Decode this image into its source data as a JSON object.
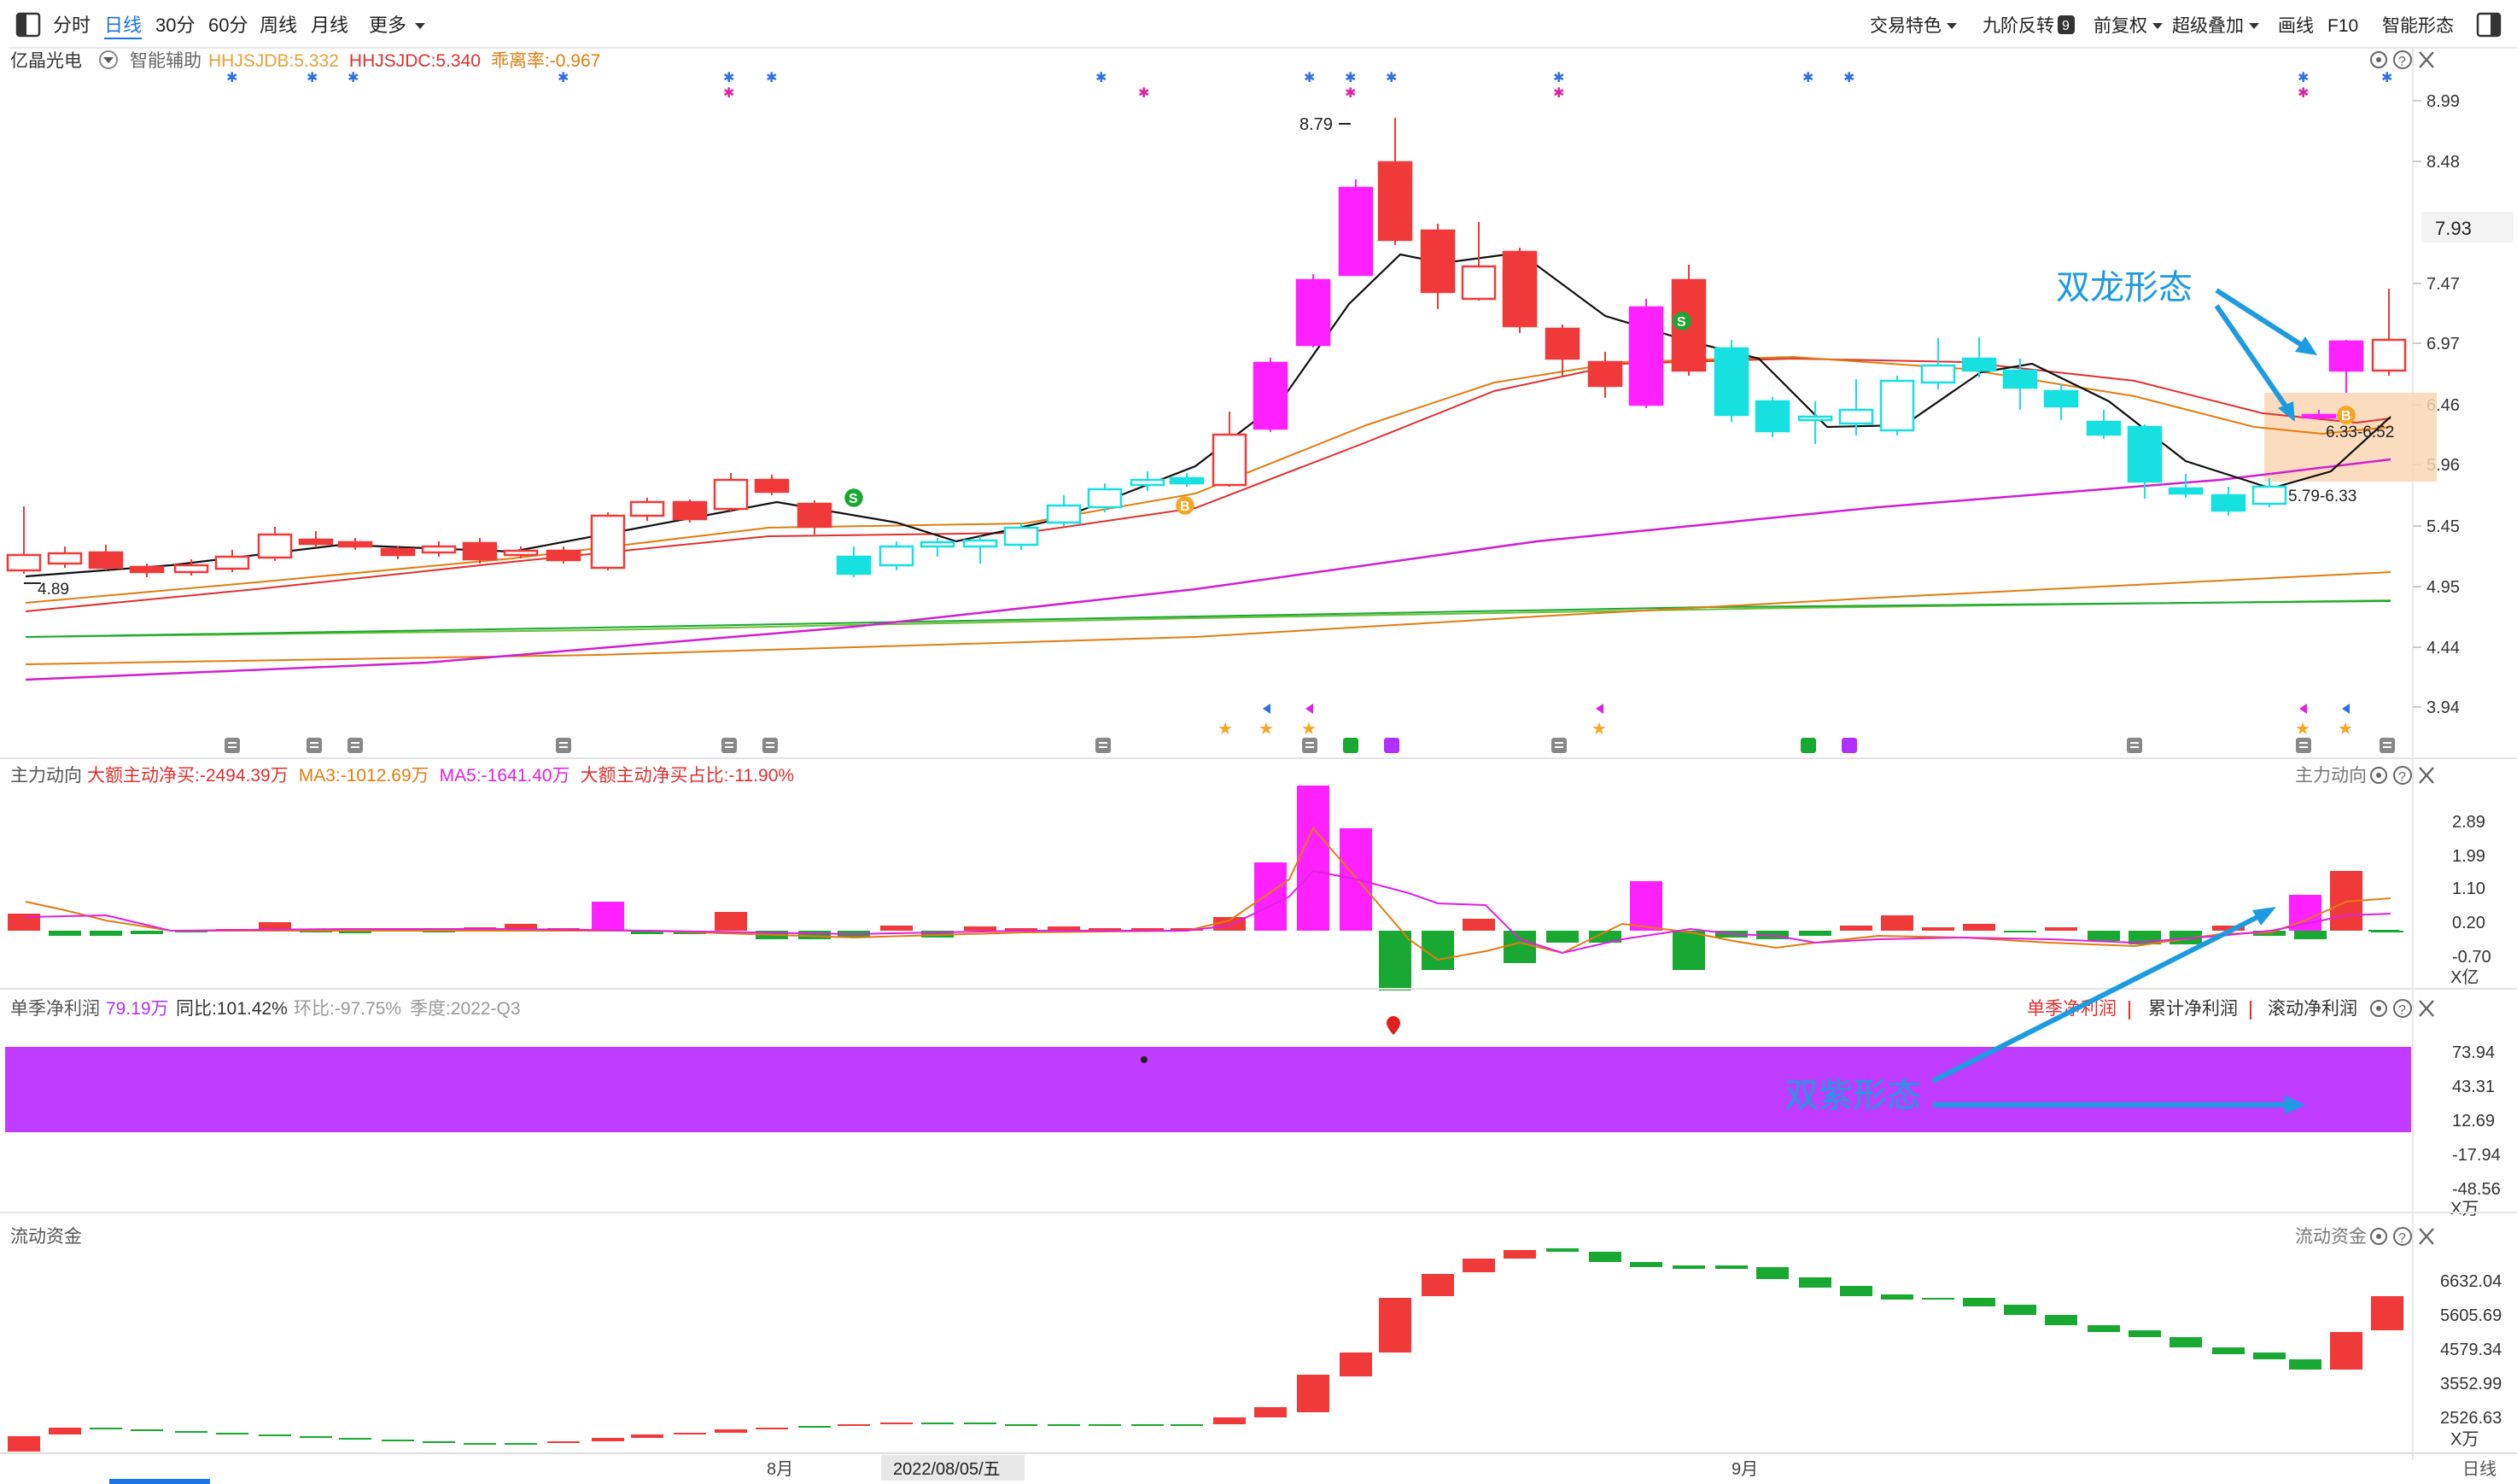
{
  "toolbar": {
    "periods": [
      {
        "label": "分时",
        "active": false
      },
      {
        "label": "日线",
        "active": true
      },
      {
        "label": "30分",
        "active": false
      },
      {
        "label": "60分",
        "active": false
      },
      {
        "label": "周线",
        "active": false
      },
      {
        "label": "月线",
        "active": false
      },
      {
        "label": "更多",
        "active": false,
        "dropdown": true
      }
    ],
    "right_items": [
      {
        "label": "交易特色",
        "dropdown": true
      },
      {
        "label": "九阶反转",
        "badge": "9"
      },
      {
        "label": "前复权",
        "dropdown": true
      },
      {
        "label": "超级叠加",
        "dropdown": true
      },
      {
        "label": "画线"
      },
      {
        "label": "F10"
      },
      {
        "label": "智能形态"
      }
    ]
  },
  "main_panel": {
    "stock_name": "亿晶光电",
    "assist_label": "智能辅助",
    "indicators": [
      {
        "text": "HHJSJDB:5.332",
        "color": "#e8a13a"
      },
      {
        "text": "HHJSJDC:5.340",
        "color": "#e03030"
      },
      {
        "text": "乖离率:-0.967",
        "color": "#e07d10"
      }
    ],
    "price_ticks": [
      "8.99",
      "8.48",
      "7.47",
      "6.97",
      "6.46",
      "5.96",
      "5.45",
      "4.95",
      "4.44",
      "3.94"
    ],
    "current_price": "7.93",
    "annotations": {
      "high_label": "8.79",
      "low_label": "4.89",
      "zone_label_upper": "6.33-6.52",
      "zone_label_lower": "5.79-6.33",
      "double_dragon": "双龙形态",
      "buy_marker": "B",
      "sell_marker": "S"
    }
  },
  "flow_panel": {
    "title": "主力动向",
    "right_title": "主力动向",
    "indicators": [
      {
        "text": "大额主动净买:-2494.39万",
        "color": "#e03030"
      },
      {
        "text": "MA3:-1012.69万",
        "color": "#e07d10"
      },
      {
        "text": "MA5:-1641.40万",
        "color": "#e020e0"
      },
      {
        "text": "大额主动净买占比:-11.90%",
        "color": "#e03030"
      }
    ],
    "ticks": [
      "2.89",
      "1.99",
      "1.10",
      "0.20",
      "-0.70"
    ],
    "unit": "X亿"
  },
  "profit_panel": {
    "title": "单季净利润",
    "value": "79.19万",
    "yoy": "同比:101.42%",
    "qoq": "环比:-97.75%",
    "season": "季度:2022-Q3",
    "tabs": [
      "单季净利润",
      "累计净利润",
      "滚动净利润"
    ],
    "ticks": [
      "73.94",
      "43.31",
      "12.69",
      "-17.94",
      "-48.56"
    ],
    "unit": "X万",
    "annotation": "双紫形态"
  },
  "liquidity_panel": {
    "title": "流动资金",
    "right_title": "流动资金",
    "ticks": [
      "6632.04",
      "5605.69",
      "4579.34",
      "3552.99",
      "2526.63"
    ],
    "unit": "X万"
  },
  "x_axis": {
    "labels": [
      "8月",
      "9月"
    ],
    "cursor_date": "2022/08/05/五",
    "mode": "日线"
  },
  "colors": {
    "up": "#f03a3a",
    "down": "#17e0e0",
    "magenta": "#ff20ff",
    "green": "#19a832",
    "purple_band": "#c03cff",
    "annotation_blue": "#1e9be0"
  }
}
